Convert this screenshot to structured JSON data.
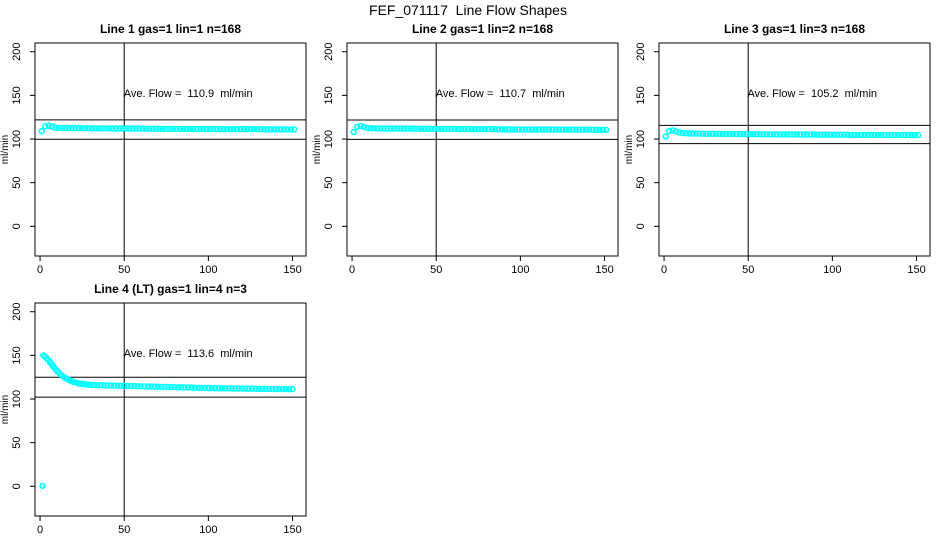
{
  "page": {
    "title": "FEF_071117  Line Flow Shapes"
  },
  "colors": {
    "point": "#00FFFF",
    "line": "#000000",
    "background": "#FFFFFF",
    "text": "#000000"
  },
  "chart_data": [
    {
      "type": "scatter",
      "title": "Line 1 gas=1 lin=1 n=168",
      "annotation": "Ave. Flow =  110.9  ml/min",
      "ave_flow_ml_min": 110.9,
      "n": 168,
      "xlabel": "",
      "ylabel": "ml/min",
      "x_ticks": [
        0,
        50,
        100,
        150
      ],
      "y_ticks": [
        0,
        50,
        100,
        150,
        200
      ],
      "xlim": [
        -3,
        158
      ],
      "ylim": [
        -34,
        210
      ],
      "grid": false,
      "vline_x": 50,
      "hlines": [
        122.0,
        99.8
      ],
      "annotation_xy": [
        88,
        148
      ],
      "series": [
        {
          "x_start": 1,
          "x_step": 2,
          "y": [
            109,
            114.5,
            115.3,
            114.2,
            113.2,
            112.8,
            112.7,
            112.6,
            112.6,
            112.5,
            112.5,
            112.5,
            112.4,
            112.4,
            112.4,
            112.3,
            112.3,
            112.3,
            112.2,
            112.2,
            112.2,
            112.1,
            112.1,
            112.1,
            112.0,
            112.0,
            112.0,
            111.9,
            111.9,
            111.9,
            111.9,
            111.8,
            111.8,
            111.8,
            111.8,
            111.7,
            111.7,
            111.7,
            111.7,
            111.6,
            111.6,
            111.6,
            111.6,
            111.5,
            111.5,
            111.5,
            111.5,
            111.5,
            111.4,
            111.4,
            111.4,
            111.4,
            111.4,
            111.3,
            111.3,
            111.3,
            111.3,
            111.3,
            111.3,
            111.2,
            111.2,
            111.2,
            111.2,
            111.2,
            111.2,
            111.2,
            111.1,
            111.1,
            111.1,
            111.1,
            111.1,
            111.1,
            111.0,
            111.0,
            111.0,
            111.0
          ]
        }
      ]
    },
    {
      "type": "scatter",
      "title": "Line 2 gas=1 lin=2 n=168",
      "annotation": "Ave. Flow =  110.7  ml/min",
      "ave_flow_ml_min": 110.7,
      "n": 168,
      "xlabel": "",
      "ylabel": "ml/min",
      "x_ticks": [
        0,
        50,
        100,
        150
      ],
      "y_ticks": [
        0,
        50,
        100,
        150,
        200
      ],
      "xlim": [
        -3,
        158
      ],
      "ylim": [
        -34,
        210
      ],
      "grid": false,
      "vline_x": 50,
      "hlines": [
        121.8,
        99.6
      ],
      "annotation_xy": [
        88,
        148
      ],
      "series": [
        {
          "x_start": 1,
          "x_step": 2,
          "y": [
            108,
            113.9,
            114.8,
            113.8,
            112.8,
            112.4,
            112.3,
            112.2,
            112.2,
            112.1,
            112.1,
            112.1,
            112.0,
            112.0,
            112.0,
            111.9,
            111.9,
            111.9,
            111.8,
            111.8,
            111.8,
            111.7,
            111.7,
            111.7,
            111.6,
            111.6,
            111.6,
            111.5,
            111.5,
            111.5,
            111.5,
            111.4,
            111.4,
            111.4,
            111.4,
            111.3,
            111.3,
            111.3,
            111.3,
            111.2,
            111.2,
            111.2,
            111.2,
            111.1,
            111.1,
            111.1,
            111.1,
            111.1,
            111.0,
            111.0,
            111.0,
            111.0,
            111.0,
            110.9,
            110.9,
            110.9,
            110.9,
            110.9,
            110.9,
            110.8,
            110.8,
            110.8,
            110.8,
            110.8,
            110.8,
            110.8,
            110.7,
            110.7,
            110.7,
            110.7,
            110.7,
            110.7,
            110.6,
            110.6,
            110.6,
            110.6
          ]
        }
      ]
    },
    {
      "type": "scatter",
      "title": "Line 3 gas=1 lin=3 n=168",
      "annotation": "Ave. Flow =  105.2  ml/min",
      "ave_flow_ml_min": 105.2,
      "n": 168,
      "xlabel": "",
      "ylabel": "ml/min",
      "x_ticks": [
        0,
        50,
        100,
        150
      ],
      "y_ticks": [
        0,
        50,
        100,
        150,
        200
      ],
      "xlim": [
        -3,
        158
      ],
      "ylim": [
        -34,
        210
      ],
      "grid": false,
      "vline_x": 50,
      "hlines": [
        115.7,
        94.7
      ],
      "annotation_xy": [
        88,
        148
      ],
      "series": [
        {
          "x_start": 1,
          "x_step": 2,
          "y": [
            103,
            109.2,
            110.0,
            108.8,
            107.5,
            106.9,
            106.6,
            106.4,
            106.3,
            106.2,
            106.2,
            106.1,
            106.1,
            106.0,
            106.0,
            105.9,
            105.9,
            105.8,
            105.8,
            105.8,
            105.7,
            105.7,
            105.7,
            105.6,
            105.6,
            105.6,
            105.5,
            105.5,
            105.5,
            105.4,
            105.4,
            105.4,
            105.4,
            105.3,
            105.3,
            105.3,
            105.3,
            105.2,
            105.2,
            105.2,
            105.2,
            105.1,
            105.1,
            105.1,
            105.1,
            105.0,
            105.0,
            105.0,
            105.0,
            105.0,
            104.9,
            104.9,
            104.9,
            104.9,
            104.9,
            104.8,
            104.8,
            104.8,
            104.8,
            104.8,
            104.8,
            104.7,
            104.7,
            104.7,
            104.7,
            104.7,
            104.7,
            104.6,
            104.6,
            104.6,
            104.6,
            104.6,
            104.6,
            104.5,
            104.5,
            104.5
          ]
        }
      ]
    },
    {
      "type": "scatter",
      "title": "Line 4 (LT) gas=1 lin=4 n=3",
      "annotation": "Ave. Flow =  113.6  ml/min",
      "ave_flow_ml_min": 113.6,
      "n": 3,
      "xlabel": "",
      "ylabel": "ml/min",
      "x_ticks": [
        0,
        50,
        100,
        150
      ],
      "y_ticks": [
        0,
        50,
        100,
        150,
        200
      ],
      "xlim": [
        -3,
        158
      ],
      "ylim": [
        -34,
        210
      ],
      "grid": false,
      "vline_x": 50,
      "hlines": [
        125.0,
        102.2
      ],
      "annotation_xy": [
        88,
        148
      ],
      "series": [
        {
          "x_start": 1.5,
          "x_step": 0,
          "y": [
            0.5
          ]
        },
        {
          "x_start": 2,
          "x_step": 1,
          "y": [
            150,
            148.5,
            146.5,
            144.5,
            142,
            139.5,
            137,
            134.5,
            132.5,
            130.5,
            128.5,
            127,
            125.5,
            124.2,
            123,
            122,
            121.1,
            120.3,
            119.6,
            119,
            118.5,
            118,
            117.6,
            117.3,
            117,
            116.8,
            116.6,
            116.4,
            116.2
          ]
        },
        {
          "x_start": 32,
          "x_step": 2,
          "y": [
            116.0,
            115.9,
            115.8,
            115.7,
            115.6,
            115.5,
            115.4,
            115.3,
            115.2,
            115.1,
            115.0,
            114.9,
            114.8,
            114.7,
            114.6,
            114.5,
            114.4,
            114.3,
            114.2,
            114.1,
            114.0,
            113.9,
            113.8,
            113.7,
            113.6,
            113.5,
            113.4,
            113.3,
            113.2,
            113.1,
            113.0,
            112.9,
            112.8,
            112.7,
            112.6,
            112.5,
            112.4,
            112.4,
            112.3,
            112.3,
            112.2,
            112.1,
            112.1,
            112.0,
            112.0,
            111.9,
            111.9,
            111.8,
            111.8,
            111.7,
            111.7,
            111.6,
            111.6,
            111.5,
            111.5,
            111.4,
            111.4,
            111.3,
            111.3,
            111.2
          ]
        }
      ]
    }
  ]
}
